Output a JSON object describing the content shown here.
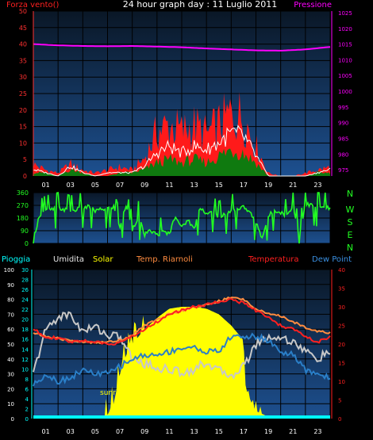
{
  "header": {
    "left_label": "Forza vento()",
    "title": "24 hour graph day : 11 Luglio 2011",
    "right_label": "Pressione"
  },
  "colors": {
    "wind_axis": "#ff3030",
    "pressure": "#ff00ff",
    "wind": "#ff1a1a",
    "wind_avg": "#0f7a0f",
    "wind_gust_line": "#ffffff",
    "direction": "#22ff22",
    "rain": "#00ffff",
    "humidity": "#c8c8c8",
    "solar": "#ffff00",
    "temp_riarnoli": "#ff8c40",
    "temperature": "#ff2020",
    "dew_point": "#2a7fc8",
    "panel_bg_top": "#0b1a2c",
    "panel_bg_bottom": "#1c4f8a",
    "grid": "#000000"
  },
  "labels": {
    "compass": [
      "N",
      "W",
      "S",
      "E",
      "N"
    ],
    "sunrise": "sunrise",
    "legend": {
      "pioggia": "Pioggia",
      "umidita": "Umidita",
      "solar": "Solar",
      "temp_riarnoli": "Temp. Riarnoli",
      "temperatura": "Temperatura",
      "dew_point": "Dew Point"
    }
  },
  "chart_data": [
    {
      "type": "line",
      "name": "wind-pressure",
      "x_ticks": [
        "01",
        "03",
        "05",
        "07",
        "09",
        "11",
        "13",
        "15",
        "17",
        "19",
        "21",
        "23"
      ],
      "left_axis": {
        "ticks": [
          0,
          5,
          10,
          15,
          20,
          25,
          30,
          35,
          40,
          45,
          50
        ],
        "ylim": [
          0,
          50
        ]
      },
      "right_axis": {
        "ticks": [
          975,
          980,
          985,
          990,
          995,
          1000,
          1005,
          1010,
          1015,
          1020,
          1025
        ],
        "ylim": [
          973,
          1025.5
        ]
      },
      "series": [
        {
          "name": "Pressione",
          "axis": "right",
          "hours": [
            0,
            2,
            4,
            6,
            8,
            10,
            12,
            14,
            16,
            18,
            20,
            22,
            24
          ],
          "values": [
            1015,
            1014.6,
            1014.4,
            1014.3,
            1014.4,
            1014.2,
            1014.0,
            1013.6,
            1013.3,
            1013.0,
            1012.9,
            1013.3,
            1014.1
          ]
        },
        {
          "name": "wind_gust",
          "axis": "left",
          "hours": [
            0,
            1,
            2,
            3,
            4,
            5,
            6,
            7,
            8,
            9,
            10,
            11,
            12,
            13,
            14,
            15,
            16,
            17,
            18,
            19,
            20,
            21,
            22,
            23,
            24
          ],
          "values": [
            4,
            2,
            1,
            4,
            2,
            1,
            2,
            3,
            2,
            6,
            15,
            17,
            15,
            17,
            14,
            17,
            21,
            20,
            10,
            1,
            0,
            0,
            1,
            2,
            3
          ]
        },
        {
          "name": "wind_avg",
          "axis": "left",
          "hours": [
            0,
            1,
            2,
            3,
            4,
            5,
            6,
            7,
            8,
            9,
            10,
            11,
            12,
            13,
            14,
            15,
            16,
            17,
            18,
            19,
            20,
            21,
            22,
            23,
            24
          ],
          "values": [
            1,
            1,
            0,
            2,
            1,
            0,
            0,
            1,
            1,
            2,
            4,
            5,
            4,
            5,
            4,
            6,
            8,
            7,
            4,
            0,
            0,
            0,
            0,
            1,
            1
          ]
        },
        {
          "name": "wind_mean",
          "axis": "left",
          "hours": [
            0,
            1,
            2,
            3,
            4,
            5,
            6,
            7,
            8,
            9,
            10,
            11,
            12,
            13,
            14,
            15,
            16,
            17,
            18,
            19,
            20,
            21,
            22,
            23,
            24
          ],
          "values": [
            2,
            1,
            0,
            3,
            1,
            0,
            1,
            1,
            1,
            3,
            7,
            9,
            7,
            9,
            8,
            10,
            13,
            12,
            6,
            0,
            0,
            0,
            0,
            1,
            2
          ]
        }
      ]
    },
    {
      "type": "line",
      "name": "wind-direction",
      "y_ticks": [
        0,
        90,
        180,
        270,
        360
      ],
      "ylim": [
        0,
        360
      ],
      "series": [
        {
          "name": "direction",
          "hours": [
            0,
            0.5,
            1,
            1.5,
            2,
            2.5,
            3,
            3.5,
            4,
            4.5,
            5,
            5.5,
            6,
            6.5,
            7,
            7.5,
            8,
            8.5,
            9,
            9.5,
            10,
            10.5,
            11,
            11.5,
            12,
            12.5,
            13,
            13.5,
            14,
            14.5,
            15,
            15.5,
            16,
            16.5,
            17,
            17.5,
            18,
            18.5,
            19,
            19.5,
            20,
            20.5,
            21,
            21.5,
            22,
            22.5,
            23,
            23.5,
            24
          ],
          "values": [
            30,
            200,
            230,
            240,
            250,
            240,
            230,
            240,
            250,
            260,
            230,
            240,
            250,
            260,
            120,
            270,
            100,
            190,
            60,
            90,
            60,
            80,
            70,
            200,
            110,
            170,
            100,
            260,
            210,
            220,
            190,
            200,
            240,
            240,
            260,
            220,
            150,
            40,
            190,
            240,
            220,
            200,
            270,
            50,
            280,
            270,
            260,
            250,
            250
          ]
        }
      ]
    },
    {
      "type": "line",
      "name": "rain-humidity-solar-temp",
      "x_ticks": [
        "01",
        "03",
        "05",
        "07",
        "09",
        "11",
        "13",
        "15",
        "17",
        "19",
        "21",
        "23"
      ],
      "axis_humidity": {
        "ticks": [
          0,
          10,
          20,
          30,
          40,
          50,
          60,
          70,
          80,
          90,
          100
        ],
        "ylim": [
          0,
          100
        ]
      },
      "axis_rain": {
        "ticks": [
          0,
          2,
          4,
          6,
          8,
          10,
          12,
          14,
          16,
          18,
          20,
          22,
          24,
          26,
          28,
          30
        ],
        "ylim": [
          0,
          30
        ]
      },
      "axis_temp": {
        "ticks": [
          0,
          5,
          10,
          15,
          20,
          25,
          30,
          35,
          40
        ],
        "ylim": [
          0,
          40
        ]
      },
      "series": [
        {
          "name": "Umidita",
          "axis": "humidity",
          "hours": [
            0,
            1,
            2,
            3,
            4,
            5,
            6,
            7,
            8,
            9,
            10,
            11,
            12,
            13,
            14,
            15,
            16,
            17,
            18,
            19,
            20,
            21,
            22,
            23,
            24
          ],
          "values": [
            30,
            60,
            68,
            70,
            58,
            62,
            56,
            55,
            40,
            37,
            34,
            33,
            31,
            33,
            38,
            32,
            29,
            35,
            50,
            55,
            54,
            52,
            45,
            40,
            45
          ]
        },
        {
          "name": "Solar",
          "axis": "temp",
          "hours": [
            0,
            5.5,
            6,
            6.5,
            7,
            7.5,
            8,
            9,
            10,
            11,
            12,
            13,
            14,
            15,
            16,
            16.5,
            17,
            17.2,
            18,
            19,
            20,
            24
          ],
          "values": [
            0,
            0,
            1,
            4,
            12,
            17,
            20,
            24,
            27,
            29.5,
            30,
            30,
            29.5,
            28,
            25,
            23,
            21,
            6,
            2,
            0.5,
            0,
            0
          ]
        },
        {
          "name": "Temp. Riarnoli",
          "axis": "temp",
          "hours": [
            0,
            1,
            2,
            3,
            4,
            5,
            6,
            7,
            8,
            9,
            10,
            11,
            12,
            13,
            14,
            15,
            16,
            17,
            18,
            19,
            20,
            21,
            22,
            23,
            24
          ],
          "values": [
            23,
            22,
            21.5,
            21,
            20.5,
            20.5,
            20.5,
            21,
            22.5,
            25,
            26.5,
            28,
            29,
            30,
            30.5,
            31.5,
            32.5,
            32,
            29.5,
            28,
            27.5,
            26,
            24.5,
            23.5,
            23
          ]
        },
        {
          "name": "Temperatura",
          "axis": "temp",
          "hours": [
            0,
            1,
            2,
            3,
            4,
            5,
            6,
            7,
            8,
            9,
            10,
            11,
            12,
            13,
            14,
            15,
            16,
            17,
            18,
            19,
            20,
            21,
            22,
            23,
            24
          ],
          "values": [
            24,
            22,
            21.5,
            20.5,
            21,
            20.5,
            20,
            20.5,
            22,
            24,
            26,
            28,
            29,
            30,
            30.5,
            31.5,
            32,
            31,
            29,
            27,
            25,
            24,
            22,
            20.5,
            22
          ]
        },
        {
          "name": "Dew Point",
          "axis": "temp",
          "hours": [
            0,
            1,
            2,
            3,
            4,
            5,
            6,
            7,
            8,
            9,
            10,
            11,
            12,
            13,
            14,
            15,
            16,
            17,
            18,
            19,
            20,
            21,
            22,
            23,
            24
          ],
          "values": [
            9,
            12,
            10,
            11,
            13,
            12,
            12,
            14,
            16,
            17,
            17,
            18,
            19,
            19,
            18,
            18,
            22,
            22,
            22,
            21,
            18,
            17,
            13,
            12,
            11
          ]
        }
      ]
    }
  ]
}
